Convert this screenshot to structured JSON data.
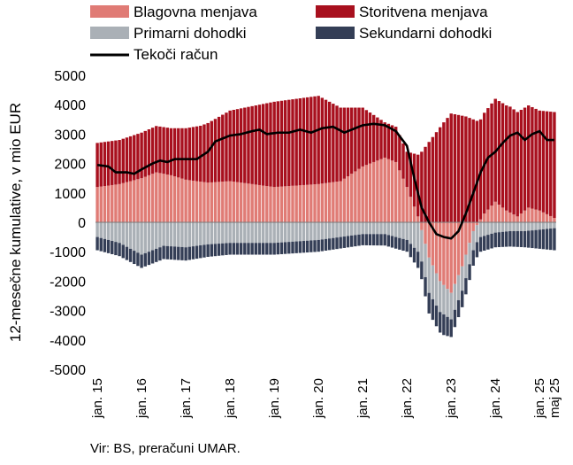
{
  "chart_data": {
    "type": "bar",
    "stacked": true,
    "ylabel": "12-mesečne kumulative, v mio EUR",
    "ylim": [
      -5000,
      5000
    ],
    "yticks": [
      -5000,
      -4000,
      -3000,
      -2000,
      -1000,
      0,
      1000,
      2000,
      3000,
      4000,
      5000
    ],
    "x_tick_labels": [
      {
        "label": "jan. 15",
        "index": 0
      },
      {
        "label": "jan. 16",
        "index": 12
      },
      {
        "label": "jan. 17",
        "index": 24
      },
      {
        "label": "jan. 18",
        "index": 36
      },
      {
        "label": "jan. 19",
        "index": 48
      },
      {
        "label": "jan. 20",
        "index": 60
      },
      {
        "label": "jan. 21",
        "index": 72
      },
      {
        "label": "jan. 22",
        "index": 84
      },
      {
        "label": "jan. 23",
        "index": 96
      },
      {
        "label": "jan. 24",
        "index": 108
      },
      {
        "label": "jan. 25",
        "index": 120
      },
      {
        "label": "maj 25",
        "index": 124
      }
    ],
    "periods": 125,
    "legend_position": "top",
    "series": [
      {
        "name": "Blagovna menjava",
        "kind": "bar",
        "color": "#e07b75",
        "knots": [
          [
            0,
            1200
          ],
          [
            6,
            1300
          ],
          [
            12,
            1500
          ],
          [
            16,
            1700
          ],
          [
            20,
            1600
          ],
          [
            24,
            1450
          ],
          [
            30,
            1350
          ],
          [
            36,
            1400
          ],
          [
            42,
            1300
          ],
          [
            48,
            1200
          ],
          [
            54,
            1250
          ],
          [
            60,
            1300
          ],
          [
            66,
            1400
          ],
          [
            72,
            1900
          ],
          [
            78,
            2200
          ],
          [
            81,
            2050
          ],
          [
            84,
            1200
          ],
          [
            87,
            200
          ],
          [
            90,
            -1200
          ],
          [
            93,
            -2000
          ],
          [
            96,
            -2400
          ],
          [
            99,
            -1500
          ],
          [
            102,
            -300
          ],
          [
            105,
            300
          ],
          [
            108,
            700
          ],
          [
            111,
            400
          ],
          [
            114,
            200
          ],
          [
            117,
            500
          ],
          [
            120,
            400
          ],
          [
            124,
            150
          ]
        ]
      },
      {
        "name": "Storitvena menjava",
        "kind": "bar",
        "color": "#a8101e",
        "knots": [
          [
            0,
            1500
          ],
          [
            6,
            1500
          ],
          [
            12,
            1550
          ],
          [
            20,
            1600
          ],
          [
            28,
            1900
          ],
          [
            36,
            2400
          ],
          [
            48,
            2900
          ],
          [
            60,
            3000
          ],
          [
            66,
            2500
          ],
          [
            72,
            2000
          ],
          [
            78,
            1200
          ],
          [
            84,
            1200
          ],
          [
            88,
            2400
          ],
          [
            94,
            3400
          ],
          [
            96,
            3700
          ],
          [
            100,
            3600
          ],
          [
            104,
            3400
          ],
          [
            108,
            3500
          ],
          [
            112,
            3600
          ],
          [
            116,
            3500
          ],
          [
            120,
            3400
          ],
          [
            124,
            3600
          ]
        ]
      },
      {
        "name": "Primarni dohodki",
        "kind": "bar",
        "color": "#aab0b6",
        "knots": [
          [
            0,
            -500
          ],
          [
            6,
            -700
          ],
          [
            12,
            -1100
          ],
          [
            18,
            -800
          ],
          [
            24,
            -850
          ],
          [
            30,
            -750
          ],
          [
            36,
            -700
          ],
          [
            48,
            -700
          ],
          [
            60,
            -600
          ],
          [
            66,
            -500
          ],
          [
            72,
            -400
          ],
          [
            78,
            -400
          ],
          [
            84,
            -600
          ],
          [
            87,
            -1000
          ],
          [
            90,
            -1200
          ],
          [
            94,
            -1000
          ],
          [
            96,
            -900
          ],
          [
            100,
            -800
          ],
          [
            104,
            -500
          ],
          [
            108,
            -350
          ],
          [
            112,
            -300
          ],
          [
            116,
            -300
          ],
          [
            120,
            -250
          ],
          [
            124,
            -200
          ]
        ]
      },
      {
        "name": "Sekundarni dohodki",
        "kind": "bar",
        "color": "#343e56",
        "knots": [
          [
            0,
            -450
          ],
          [
            12,
            -450
          ],
          [
            24,
            -450
          ],
          [
            36,
            -400
          ],
          [
            48,
            -400
          ],
          [
            60,
            -400
          ],
          [
            72,
            -380
          ],
          [
            84,
            -400
          ],
          [
            90,
            -700
          ],
          [
            94,
            -700
          ],
          [
            96,
            -600
          ],
          [
            100,
            -550
          ],
          [
            104,
            -500
          ],
          [
            108,
            -500
          ],
          [
            116,
            -550
          ],
          [
            120,
            -650
          ],
          [
            124,
            -750
          ]
        ]
      },
      {
        "name": "Tekoči račun",
        "kind": "line",
        "color": "#000000",
        "knots": [
          [
            0,
            1950
          ],
          [
            3,
            1900
          ],
          [
            5,
            1700
          ],
          [
            8,
            1700
          ],
          [
            10,
            1650
          ],
          [
            12,
            1800
          ],
          [
            15,
            2000
          ],
          [
            17,
            2100
          ],
          [
            19,
            2050
          ],
          [
            21,
            2150
          ],
          [
            24,
            2150
          ],
          [
            27,
            2150
          ],
          [
            30,
            2400
          ],
          [
            32,
            2750
          ],
          [
            34,
            2850
          ],
          [
            36,
            2950
          ],
          [
            39,
            3000
          ],
          [
            42,
            3100
          ],
          [
            44,
            3150
          ],
          [
            46,
            3000
          ],
          [
            49,
            3050
          ],
          [
            52,
            3050
          ],
          [
            55,
            3150
          ],
          [
            58,
            3050
          ],
          [
            61,
            3200
          ],
          [
            64,
            3250
          ],
          [
            67,
            3050
          ],
          [
            70,
            3200
          ],
          [
            72,
            3300
          ],
          [
            75,
            3350
          ],
          [
            78,
            3300
          ],
          [
            81,
            3100
          ],
          [
            84,
            2600
          ],
          [
            86,
            1500
          ],
          [
            88,
            500
          ],
          [
            90,
            0
          ],
          [
            92,
            -400
          ],
          [
            94,
            -500
          ],
          [
            96,
            -550
          ],
          [
            98,
            -300
          ],
          [
            100,
            300
          ],
          [
            102,
            1000
          ],
          [
            104,
            1700
          ],
          [
            106,
            2200
          ],
          [
            108,
            2400
          ],
          [
            110,
            2700
          ],
          [
            112,
            2950
          ],
          [
            114,
            3050
          ],
          [
            116,
            2800
          ],
          [
            118,
            3000
          ],
          [
            120,
            3100
          ],
          [
            122,
            2800
          ],
          [
            124,
            2800
          ]
        ]
      }
    ]
  },
  "source": "Vir: BS, preračuni UMAR."
}
